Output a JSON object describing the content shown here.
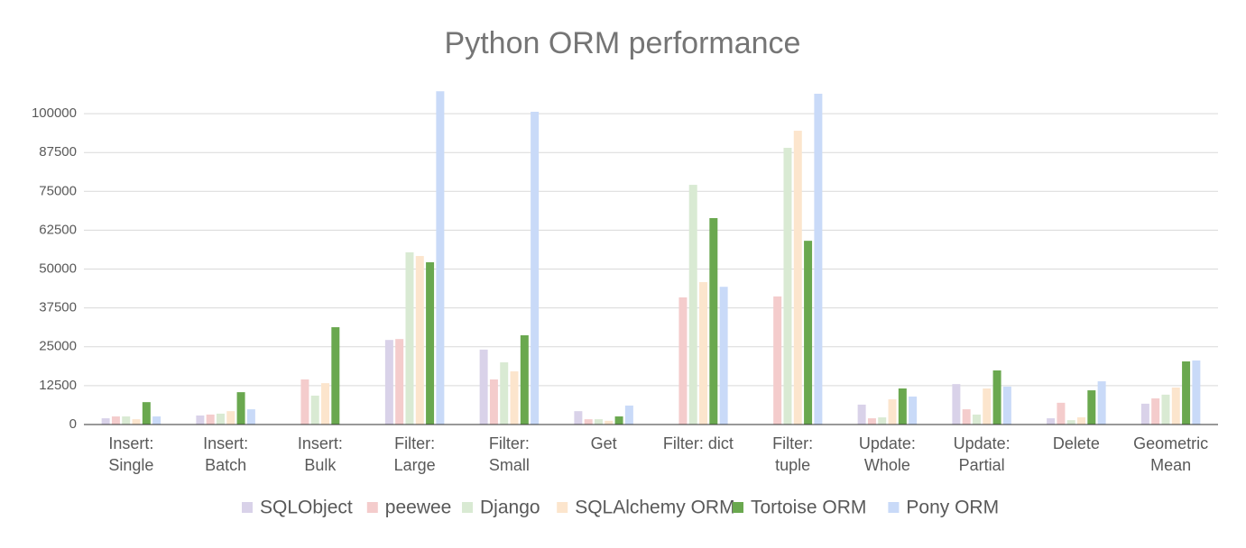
{
  "chart_data": {
    "type": "bar",
    "title": "Python ORM performance",
    "categories": [
      "Insert:\nSingle",
      "Insert:\nBatch",
      "Insert:\nBulk",
      "Filter:\nLarge",
      "Filter:\nSmall",
      "Get",
      "Filter: dict",
      "Filter:\ntuple",
      "Update:\nWhole",
      "Update:\nPartial",
      "Delete",
      "Geometric\nMean"
    ],
    "series": [
      {
        "name": "SQLObject",
        "color": "#d9d2e9",
        "values": [
          2000,
          2900,
          null,
          27200,
          24100,
          4300,
          null,
          null,
          6400,
          13000,
          2000,
          6700
        ]
      },
      {
        "name": "peewee",
        "color": "#f4cccc",
        "values": [
          2600,
          3200,
          14500,
          27500,
          14500,
          1700,
          40900,
          41200,
          2000,
          4900,
          7000,
          8400
        ]
      },
      {
        "name": "Django",
        "color": "#d9ead3",
        "values": [
          2600,
          3500,
          9300,
          55400,
          20000,
          1700,
          77100,
          89000,
          2300,
          3200,
          1400,
          9600
        ]
      },
      {
        "name": "SQLAlchemy ORM",
        "color": "#fce5cd",
        "values": [
          1700,
          4300,
          13300,
          54200,
          17100,
          1200,
          45800,
          94500,
          8100,
          11600,
          2300,
          11900
        ]
      },
      {
        "name": "Tortoise ORM",
        "color": "#6aa84f",
        "values": [
          7200,
          10400,
          31300,
          52200,
          28700,
          2600,
          66400,
          59100,
          11600,
          17400,
          11000,
          20300
        ]
      },
      {
        "name": "Pony ORM",
        "color": "#c9daf8",
        "values": [
          2600,
          4900,
          null,
          107200,
          100600,
          6100,
          44300,
          106400,
          9000,
          12200,
          13900,
          20600
        ]
      }
    ],
    "ylim": [
      0,
      106400
    ],
    "yticks": [
      0,
      12500,
      25000,
      37500,
      50000,
      62500,
      75000,
      87500,
      100000
    ],
    "grid": true,
    "legend": "bottom"
  }
}
